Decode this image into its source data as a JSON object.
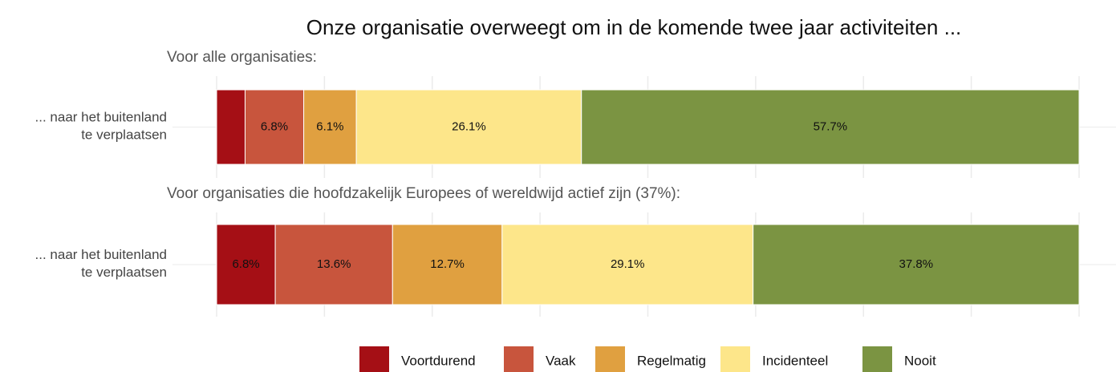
{
  "title": "Onze organisatie overweegt om in de komende twee jaar activiteiten ...",
  "chart_data": [
    {
      "type": "stacked-bar-horizontal",
      "subtitle": "Voor alle organisaties:",
      "categories": [
        "... naar het buitenland\nte verplaatsen"
      ],
      "xlim": [
        0,
        100
      ],
      "xticks": [
        0,
        12.5,
        25,
        37.5,
        50,
        62.5,
        75,
        87.5,
        100
      ],
      "grid": true,
      "series": [
        {
          "name": "Voortdurend",
          "color": "#a50f15",
          "values": [
            3.3
          ],
          "value_labels": [
            null
          ]
        },
        {
          "name": "Vaak",
          "color": "#c8553d",
          "values": [
            6.8
          ],
          "value_labels": [
            "6.8%"
          ]
        },
        {
          "name": "Regelmatig",
          "color": "#e0a040",
          "values": [
            6.1
          ],
          "value_labels": [
            "6.1%"
          ]
        },
        {
          "name": "Incidenteel",
          "color": "#fde68a",
          "values": [
            26.1
          ],
          "value_labels": [
            "26.1%"
          ]
        },
        {
          "name": "Nooit",
          "color": "#7b9442",
          "values": [
            57.7
          ],
          "value_labels": [
            "57.7%"
          ]
        }
      ]
    },
    {
      "type": "stacked-bar-horizontal",
      "subtitle": "Voor organisaties die hoofdzakelijk Europees of wereldwijd actief zijn (37%):",
      "categories": [
        "... naar het buitenland\nte verplaatsen"
      ],
      "xlim": [
        0,
        100
      ],
      "xticks": [
        0,
        12.5,
        25,
        37.5,
        50,
        62.5,
        75,
        87.5,
        100
      ],
      "grid": true,
      "series": [
        {
          "name": "Voortdurend",
          "color": "#a50f15",
          "values": [
            6.8
          ],
          "value_labels": [
            "6.8%"
          ]
        },
        {
          "name": "Vaak",
          "color": "#c8553d",
          "values": [
            13.6
          ],
          "value_labels": [
            "13.6%"
          ]
        },
        {
          "name": "Regelmatig",
          "color": "#e0a040",
          "values": [
            12.7
          ],
          "value_labels": [
            "12.7%"
          ]
        },
        {
          "name": "Incidenteel",
          "color": "#fde68a",
          "values": [
            29.1
          ],
          "value_labels": [
            "29.1%"
          ]
        },
        {
          "name": "Nooit",
          "color": "#7b9442",
          "values": [
            37.8
          ],
          "value_labels": [
            "37.8%"
          ]
        }
      ]
    }
  ]
}
